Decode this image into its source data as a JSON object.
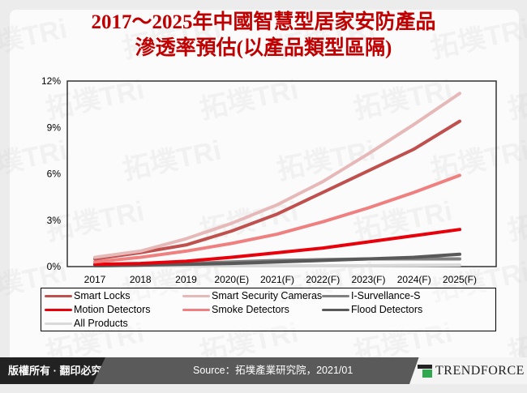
{
  "title_line1": "2017～2025年中國智慧型居家安防產品",
  "title_line2": "滲透率預估(以產品類型區隔)",
  "chart_data": {
    "type": "line",
    "categories": [
      "2017",
      "2018",
      "2019",
      "2020(E)",
      "2021(F)",
      "2022(F)",
      "2023(F)",
      "2024(F)",
      "2025(F)"
    ],
    "ylim": [
      0,
      12
    ],
    "yticks": [
      "0%",
      "3%",
      "6%",
      "9%",
      "12%"
    ],
    "ytick_values": [
      0,
      3,
      6,
      9,
      12
    ],
    "legend_position": "bottom",
    "series": [
      {
        "name": "Smart Locks",
        "color": "#c0504d",
        "values": [
          0.5,
          0.9,
          1.4,
          2.3,
          3.4,
          4.8,
          6.2,
          7.6,
          9.4
        ]
      },
      {
        "name": "Smart Security Cameras",
        "color": "#e6b9b8",
        "values": [
          0.6,
          1.0,
          1.8,
          2.8,
          4.0,
          5.5,
          7.3,
          9.2,
          11.2
        ]
      },
      {
        "name": "I-Survellance-S",
        "color": "#808080",
        "values": [
          0.05,
          0.1,
          0.2,
          0.3,
          0.4,
          0.45,
          0.5,
          0.5,
          0.5
        ]
      },
      {
        "name": "Motion Detectors",
        "color": "#e8000b",
        "values": [
          0.15,
          0.2,
          0.35,
          0.6,
          0.9,
          1.2,
          1.6,
          2.0,
          2.4
        ]
      },
      {
        "name": "Smoke Detectors",
        "color": "#f08080",
        "values": [
          0.3,
          0.6,
          1.0,
          1.5,
          2.1,
          2.9,
          3.8,
          4.8,
          5.9
        ]
      },
      {
        "name": "Flood Detectors",
        "color": "#595959",
        "values": [
          0.05,
          0.1,
          0.15,
          0.2,
          0.3,
          0.4,
          0.5,
          0.6,
          0.8
        ]
      },
      {
        "name": "All Products",
        "color": "#d9d9d9",
        "values": [
          0.05,
          0.05,
          0.05,
          0.05,
          0.05,
          0.05,
          0.05,
          0.08,
          0.1
        ]
      }
    ]
  },
  "watermark": "拓墣TRi TOPOLOGY RESEARCH INSTITUTE",
  "footer": {
    "copyright": "版權所有 · 翻印必究",
    "source": "Source：拓墣產業研究院，2021/01",
    "brand": "TrendForce"
  }
}
